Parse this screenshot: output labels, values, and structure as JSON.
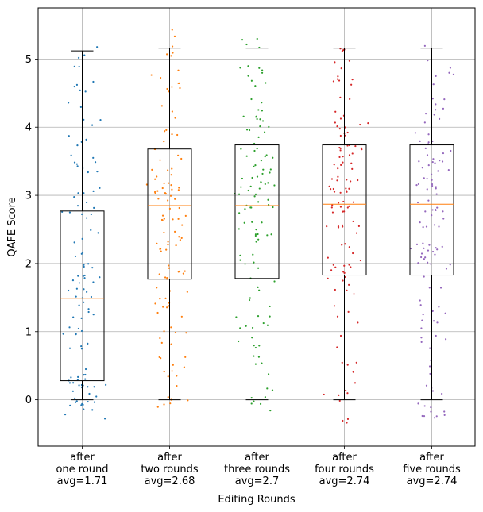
{
  "chart_data": {
    "type": "box",
    "title": "",
    "xlabel": "Editing Rounds",
    "ylabel": "QAFE Score",
    "ylim": [
      -0.68,
      5.75
    ],
    "yticks": [
      0,
      1,
      2,
      3,
      4,
      5
    ],
    "grid": true,
    "categories": [
      {
        "lines": [
          "after",
          "one round",
          "avg=1.71"
        ],
        "color": "#1f77b4",
        "box": {
          "whisker_low": 0,
          "q1": 0.28,
          "median": 1.49,
          "q3": 2.77,
          "whisker_high": 5.12
        },
        "jitter_range": [
          -0.3,
          5.2
        ],
        "n_points": 120,
        "seed": 11
      },
      {
        "lines": [
          "after",
          "two rounds",
          "avg=2.68"
        ],
        "color": "#ff7f0e",
        "box": {
          "whisker_low": 0,
          "q1": 1.77,
          "median": 2.85,
          "q3": 3.68,
          "whisker_high": 5.16
        },
        "jitter_range": [
          -0.15,
          5.45
        ],
        "n_points": 120,
        "seed": 23
      },
      {
        "lines": [
          "after",
          "three rounds",
          "avg=2.7"
        ],
        "color": "#2ca02c",
        "box": {
          "whisker_low": 0,
          "q1": 1.78,
          "median": 2.85,
          "q3": 3.74,
          "whisker_high": 5.16
        },
        "jitter_range": [
          -0.17,
          5.4
        ],
        "n_points": 120,
        "seed": 37
      },
      {
        "lines": [
          "after",
          "four rounds",
          "avg=2.74"
        ],
        "color": "#d62728",
        "box": {
          "whisker_low": 0,
          "q1": 1.83,
          "median": 2.87,
          "q3": 3.74,
          "whisker_high": 5.16
        },
        "jitter_range": [
          -0.38,
          5.17
        ],
        "n_points": 120,
        "seed": 41
      },
      {
        "lines": [
          "after",
          "five rounds",
          "avg=2.74"
        ],
        "color": "#9467bd",
        "box": {
          "whisker_low": 0,
          "q1": 1.83,
          "median": 2.87,
          "q3": 3.74,
          "whisker_high": 5.16
        },
        "jitter_range": [
          -0.28,
          5.4
        ],
        "n_points": 120,
        "seed": 53
      }
    ],
    "median_color": "#ff7f0e"
  }
}
